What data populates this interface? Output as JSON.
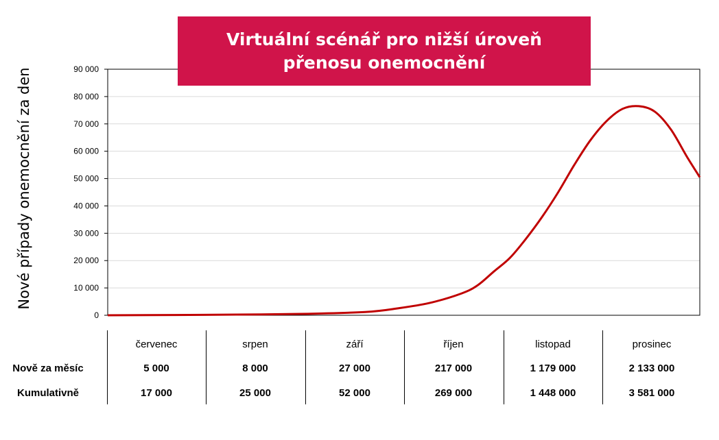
{
  "title": {
    "line1": "Virtuální scénář pro nižší úroveň",
    "line2": "přenosu onemocnění"
  },
  "colors": {
    "title_bg": "#d0144a",
    "line": "#c00000",
    "grid": "#d9d9d9"
  },
  "chart_data": {
    "type": "line",
    "ylabel": "Nové případy onemocnění za den",
    "ylim": [
      0,
      90000
    ],
    "yticks": [
      0,
      10000,
      20000,
      30000,
      40000,
      50000,
      60000,
      70000,
      80000,
      90000
    ],
    "ytick_labels": [
      "0",
      "10 000",
      "20 000",
      "30 000",
      "40 000",
      "50 000",
      "60 000",
      "70 000",
      "80 000",
      "90 000"
    ],
    "grid": true,
    "x_range": [
      "1. 7.",
      "31. 12."
    ],
    "series": [
      {
        "x_days": [
          0,
          20,
          40,
          60,
          80,
          90,
          100,
          110,
          115,
          120,
          125,
          130,
          135,
          140,
          145,
          150,
          155,
          160,
          165,
          170,
          175,
          180,
          184
        ],
        "values": [
          0,
          100,
          250,
          500,
          1200,
          2500,
          4500,
          8000,
          11000,
          16000,
          21000,
          28000,
          36000,
          45000,
          55000,
          64000,
          71000,
          75500,
          76500,
          74500,
          68000,
          58000,
          50500
        ]
      }
    ]
  },
  "table": {
    "row_labels": [
      "Nově za měsíc",
      "Kumulativně"
    ],
    "columns": [
      {
        "month": "červenec",
        "new": "5 000",
        "cumulative": "17 000"
      },
      {
        "month": "srpen",
        "new": "8 000",
        "cumulative": "25 000"
      },
      {
        "month": "září",
        "new": "27 000",
        "cumulative": "52 000"
      },
      {
        "month": "říjen",
        "new": "217 000",
        "cumulative": "269 000"
      },
      {
        "month": "listopad",
        "new": "1 179 000",
        "cumulative": "1 448 000"
      },
      {
        "month": "prosinec",
        "new": "2 133 000",
        "cumulative": "3 581 000"
      }
    ]
  }
}
